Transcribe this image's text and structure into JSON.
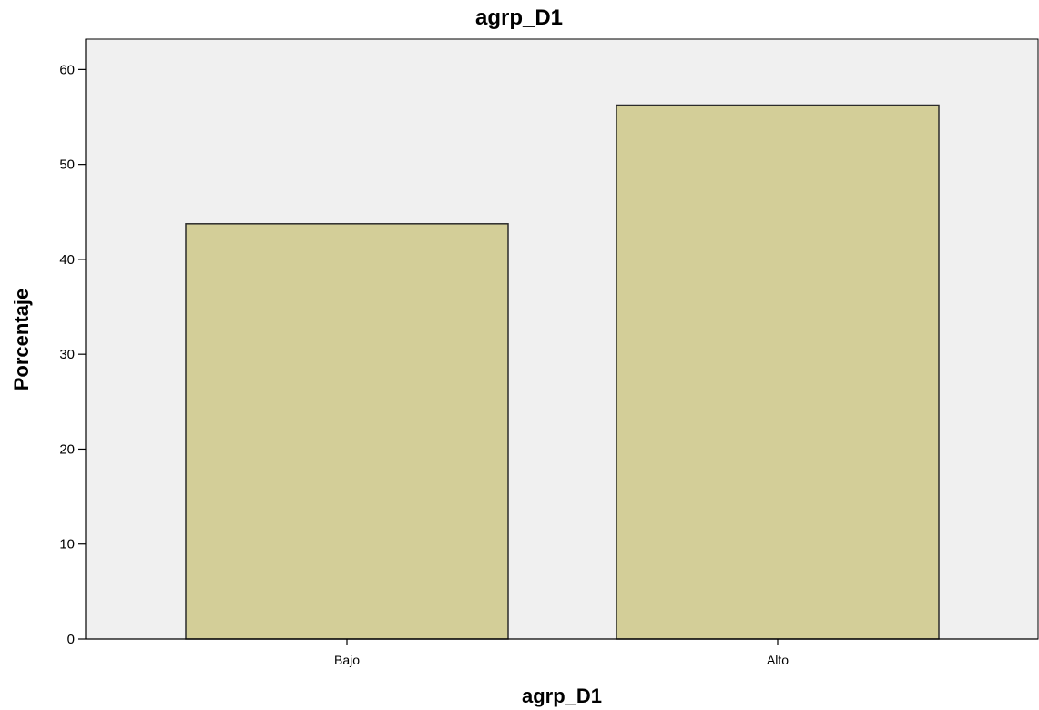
{
  "chart_data": {
    "type": "bar",
    "title": "agrp_D1",
    "xlabel": "agrp_D1",
    "ylabel": "Porcentaje",
    "categories": [
      "Bajo",
      "Alto"
    ],
    "values": [
      43.75,
      56.25
    ],
    "ylim": [
      0,
      63.2
    ],
    "yticks": [
      0,
      10,
      20,
      30,
      40,
      50,
      60
    ],
    "grid": false,
    "legend": "none",
    "colors": {
      "bar_fill": "#d3ce98",
      "bar_stroke": "#2b2b2b",
      "plot_background": "#f0f0f0",
      "axis": "#000000"
    }
  }
}
